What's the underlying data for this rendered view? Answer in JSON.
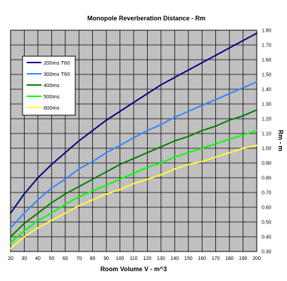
{
  "chart_data": {
    "type": "line",
    "title": "Monopole Reverberation Distance - Rm",
    "xlabel": "Room Volume V - m^3",
    "ylabel": "Rm - m",
    "xlim": [
      20,
      200
    ],
    "ylim": [
      0.3,
      1.8
    ],
    "x_ticks": [
      "20",
      "30",
      "40",
      "50",
      "60",
      "70",
      "80",
      "90",
      "100",
      "110",
      "120",
      "130",
      "140",
      "150",
      "160",
      "170",
      "180",
      "190",
      "200"
    ],
    "y_ticks": [
      "0.30",
      "0.40",
      "0.50",
      "0.60",
      "0.70",
      "0.80",
      "0.90",
      "1.00",
      "1.10",
      "1.20",
      "1.30",
      "1.40",
      "1.50",
      "1.60",
      "1.70",
      "1.80"
    ],
    "y_axis_side": "right",
    "grid": true,
    "legend_position": "top-left",
    "x": [
      20,
      30,
      40,
      50,
      60,
      70,
      80,
      90,
      100,
      110,
      120,
      130,
      140,
      150,
      160,
      170,
      180,
      190,
      200
    ],
    "series": [
      {
        "name": "200ms T60",
        "color": "#000080",
        "values": [
          0.56,
          0.69,
          0.8,
          0.89,
          0.97,
          1.05,
          1.12,
          1.19,
          1.25,
          1.31,
          1.37,
          1.43,
          1.48,
          1.53,
          1.58,
          1.63,
          1.68,
          1.73,
          1.78
        ]
      },
      {
        "name": "300ms T60",
        "color": "#3385ff",
        "values": [
          0.46,
          0.56,
          0.65,
          0.73,
          0.79,
          0.86,
          0.91,
          0.97,
          1.02,
          1.07,
          1.12,
          1.16,
          1.21,
          1.25,
          1.29,
          1.33,
          1.37,
          1.41,
          1.45
        ]
      },
      {
        "name": "400ms",
        "color": "#007f00",
        "values": [
          0.4,
          0.49,
          0.56,
          0.63,
          0.69,
          0.74,
          0.79,
          0.84,
          0.89,
          0.93,
          0.97,
          1.01,
          1.05,
          1.08,
          1.12,
          1.15,
          1.19,
          1.22,
          1.26
        ]
      },
      {
        "name": "500ms",
        "color": "#00ff00",
        "values": [
          0.36,
          0.44,
          0.51,
          0.56,
          0.62,
          0.67,
          0.71,
          0.75,
          0.79,
          0.83,
          0.87,
          0.9,
          0.94,
          0.97,
          1.0,
          1.03,
          1.06,
          1.09,
          1.12
        ]
      },
      {
        "name": "600ms",
        "color": "#ffff33",
        "values": [
          0.32,
          0.4,
          0.46,
          0.51,
          0.56,
          0.61,
          0.65,
          0.69,
          0.72,
          0.76,
          0.79,
          0.82,
          0.86,
          0.89,
          0.91,
          0.94,
          0.97,
          1.0,
          1.02
        ]
      }
    ]
  }
}
